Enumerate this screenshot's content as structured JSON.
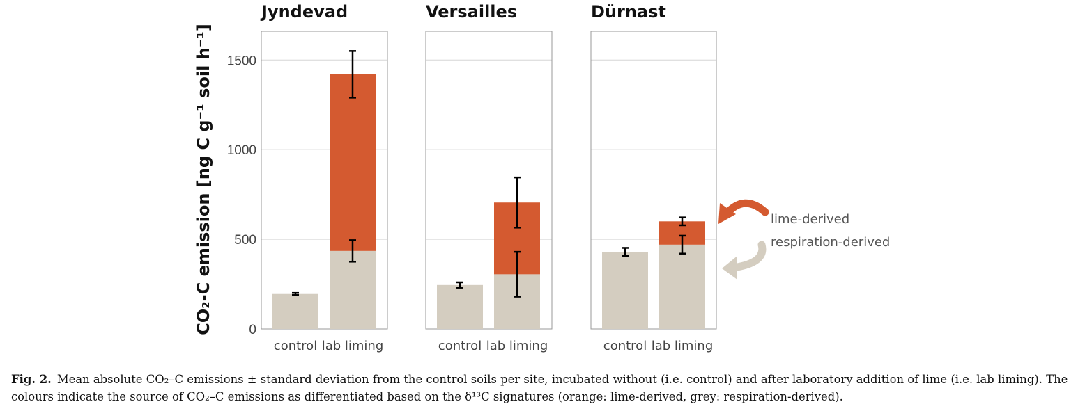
{
  "chart_data": {
    "type": "bar",
    "stacked": true,
    "ylabel": "CO₂-C emission [ng C g⁻¹ soil h⁻¹]",
    "ylim": [
      0,
      1660
    ],
    "yticks": [
      0,
      500,
      1000,
      1500
    ],
    "grid": true,
    "panels": [
      {
        "title": "Jyndevad",
        "categories": [
          "control",
          "lab liming"
        ],
        "series": [
          {
            "name": "respiration-derived",
            "values": [
              195,
              435
            ],
            "error": [
              6,
              60
            ]
          },
          {
            "name": "lime-derived",
            "values": [
              0,
              985
            ],
            "error": [
              0,
              130
            ]
          }
        ]
      },
      {
        "title": "Versailles",
        "categories": [
          "control",
          "lab liming"
        ],
        "series": [
          {
            "name": "respiration-derived",
            "values": [
              245,
              305
            ],
            "error": [
              15,
              125
            ]
          },
          {
            "name": "lime-derived",
            "values": [
              0,
              400
            ],
            "error": [
              0,
              140
            ]
          }
        ]
      },
      {
        "title": "Dürnast",
        "categories": [
          "control",
          "lab liming"
        ],
        "series": [
          {
            "name": "respiration-derived",
            "values": [
              430,
              470
            ],
            "error": [
              22,
              50
            ]
          },
          {
            "name": "lime-derived",
            "values": [
              0,
              130
            ],
            "error": [
              0,
              22
            ]
          }
        ]
      }
    ],
    "legend": {
      "placement": "right"
    }
  },
  "colors": {
    "lime": "#d45a30",
    "respiration": "#d4cdc0",
    "grid": "#d6d6d6",
    "frame": "#999999",
    "error": "#000000"
  },
  "caption": {
    "label": "Fig. 2.",
    "text": "Mean absolute CO₂–C emissions ± standard deviation from the control soils per site, incubated without (i.e. control) and after laboratory addition of lime (i.e. lab liming). The colours indicate the source of CO₂–C emissions as differentiated based on the δ¹³C signatures (orange: lime-derived, grey: respiration-derived)."
  }
}
